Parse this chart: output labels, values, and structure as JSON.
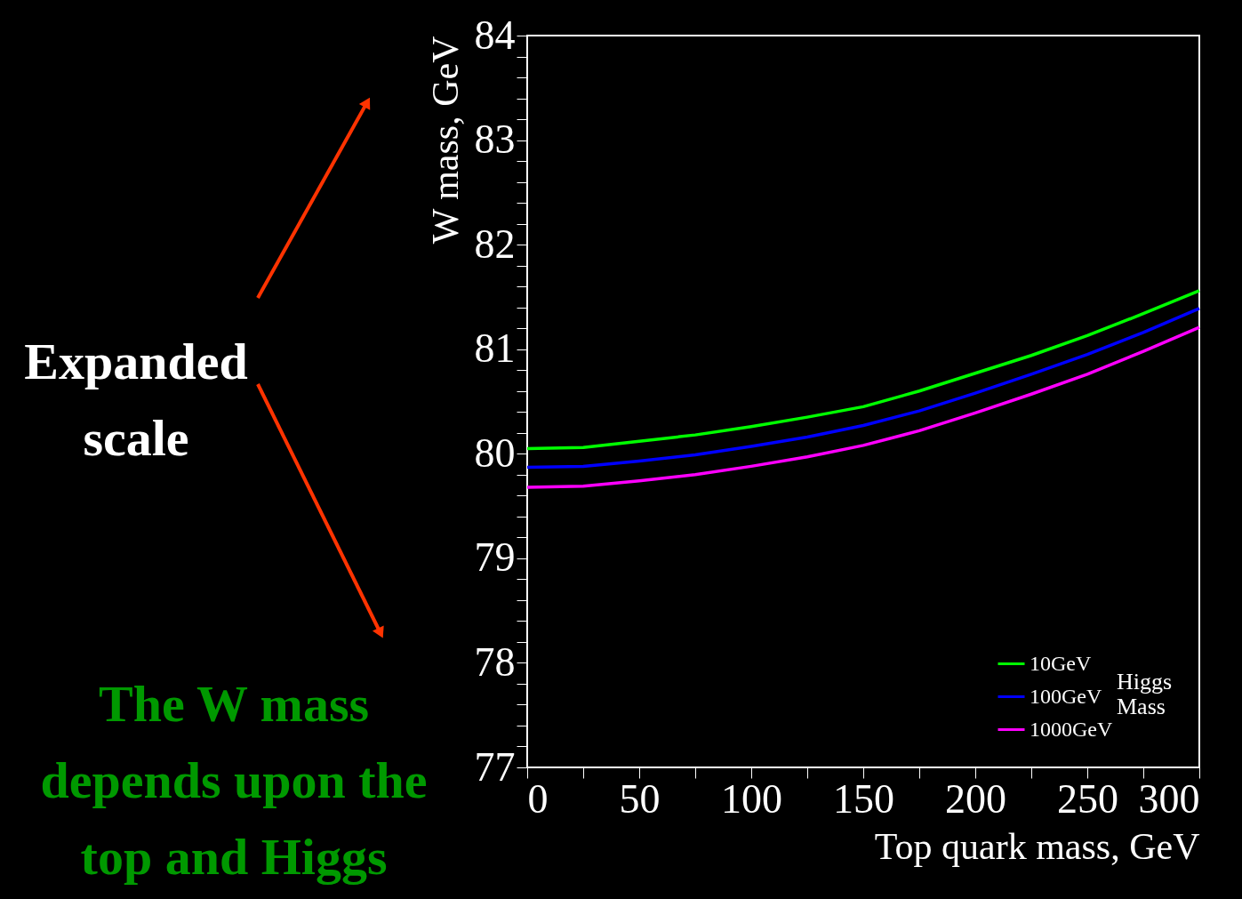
{
  "chart_data": {
    "type": "line",
    "xlabel": "Top quark mass, GeV",
    "ylabel": "W mass, GeV",
    "legend_title": "Higgs Mass",
    "x": [
      0,
      25,
      50,
      75,
      100,
      125,
      150,
      175,
      200,
      225,
      250,
      275,
      300
    ],
    "series": [
      {
        "name": "10GeV",
        "color": "#00ff00",
        "values": [
          80.05,
          80.06,
          80.12,
          80.18,
          80.26,
          80.35,
          80.45,
          80.6,
          80.77,
          80.94,
          81.13,
          81.34,
          81.56
        ]
      },
      {
        "name": "100GeV",
        "color": "#0000ff",
        "values": [
          79.87,
          79.88,
          79.93,
          79.99,
          80.07,
          80.16,
          80.27,
          80.41,
          80.58,
          80.76,
          80.95,
          81.16,
          81.39
        ]
      },
      {
        "name": "1000GeV",
        "color": "#ff00ff",
        "values": [
          79.68,
          79.69,
          79.74,
          79.8,
          79.88,
          79.97,
          80.08,
          80.22,
          80.39,
          80.57,
          80.76,
          80.98,
          81.21
        ]
      }
    ],
    "xlim": [
      0,
      300
    ],
    "ylim": [
      77,
      84
    ],
    "xticks": [
      0,
      {
        "value": 25,
        "label": null
      },
      50,
      {
        "value": 75,
        "label": null
      },
      100,
      {
        "value": 125,
        "label": null
      },
      150,
      {
        "value": 175,
        "label": null
      },
      200,
      {
        "value": 225,
        "label": null
      },
      250,
      {
        "value": 275,
        "label": null
      },
      300
    ],
    "yticks": [
      77,
      {
        "value": 77.2,
        "label": null
      },
      {
        "value": 77.4,
        "label": null
      },
      {
        "value": 77.6,
        "label": null
      },
      {
        "value": 77.8,
        "label": null
      },
      78,
      {
        "value": 78.2,
        "label": null
      },
      {
        "value": 78.4,
        "label": null
      },
      {
        "value": 78.6,
        "label": null
      },
      {
        "value": 78.8,
        "label": null
      },
      79,
      {
        "value": 79.2,
        "label": null
      },
      {
        "value": 79.4,
        "label": null
      },
      {
        "value": 79.6,
        "label": null
      },
      {
        "value": 79.8,
        "label": null
      },
      80,
      {
        "value": 80.2,
        "label": null
      },
      {
        "value": 80.4,
        "label": null
      },
      {
        "value": 80.6,
        "label": null
      },
      {
        "value": 80.8,
        "label": null
      },
      81,
      {
        "value": 81.2,
        "label": null
      },
      {
        "value": 81.4,
        "label": null
      },
      {
        "value": 81.6,
        "label": null
      },
      {
        "value": 81.8,
        "label": null
      },
      82,
      {
        "value": 82.2,
        "label": null
      },
      {
        "value": 82.4,
        "label": null
      },
      {
        "value": 82.6,
        "label": null
      },
      {
        "value": 82.8,
        "label": null
      },
      83,
      {
        "value": 83.2,
        "label": null
      },
      {
        "value": 83.4,
        "label": null
      },
      {
        "value": 83.6,
        "label": null
      },
      {
        "value": 83.8,
        "label": null
      },
      84
    ],
    "grid": false,
    "legend": "bottom right",
    "marker": "none",
    "line_style": "solid",
    "annotations": [
      "Expanded scale",
      "The W mass depends upon the top and Higgs"
    ]
  }
}
